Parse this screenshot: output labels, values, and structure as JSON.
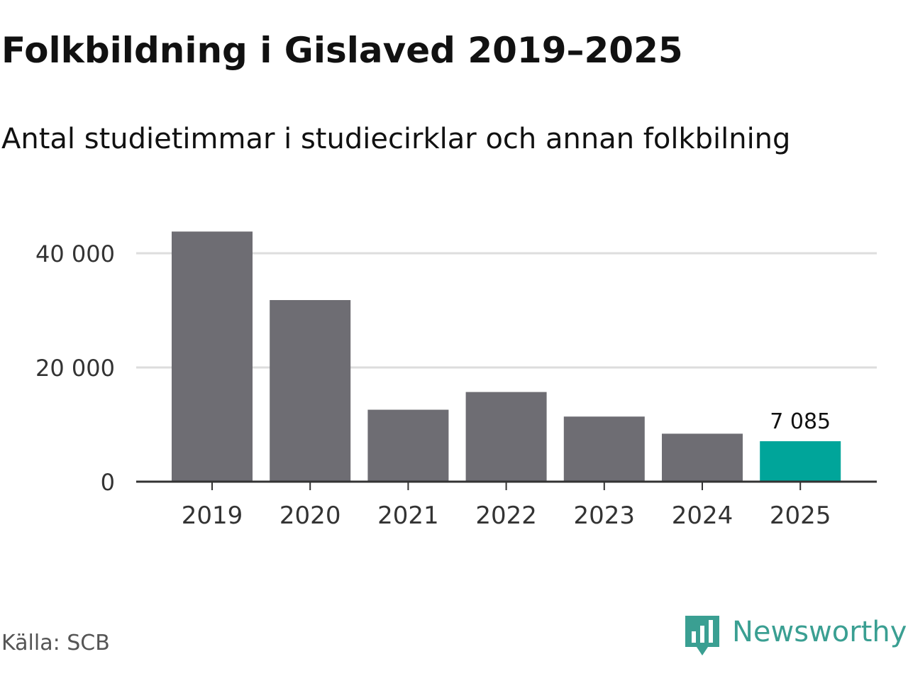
{
  "title": "Folkbildning i Gislaved 2019–2025",
  "subtitle": "Antal studietimmar i studiecirklar och annan folkbilning",
  "source": "Källa: SCB",
  "brand": {
    "name": "Newsworthy",
    "icon": "newsworthy-logo-icon",
    "color": "#3a9f92"
  },
  "colors": {
    "bar": "#6e6d73",
    "highlight": "#00a59a",
    "grid": "#dddddd",
    "axis": "#333333"
  },
  "chart_data": {
    "type": "bar",
    "categories": [
      "2019",
      "2020",
      "2021",
      "2022",
      "2023",
      "2024",
      "2025"
    ],
    "values": [
      43800,
      31800,
      12600,
      15700,
      11400,
      8400,
      7085
    ],
    "highlight_index": 6,
    "value_labels": [
      {
        "index": 6,
        "text": "7 085"
      }
    ],
    "ylim": [
      0,
      46000
    ],
    "yticks": [
      0,
      20000,
      40000
    ],
    "ytick_labels": [
      "0",
      "20 000",
      "40 000"
    ],
    "grid": true,
    "xlabel": "",
    "ylabel": ""
  }
}
